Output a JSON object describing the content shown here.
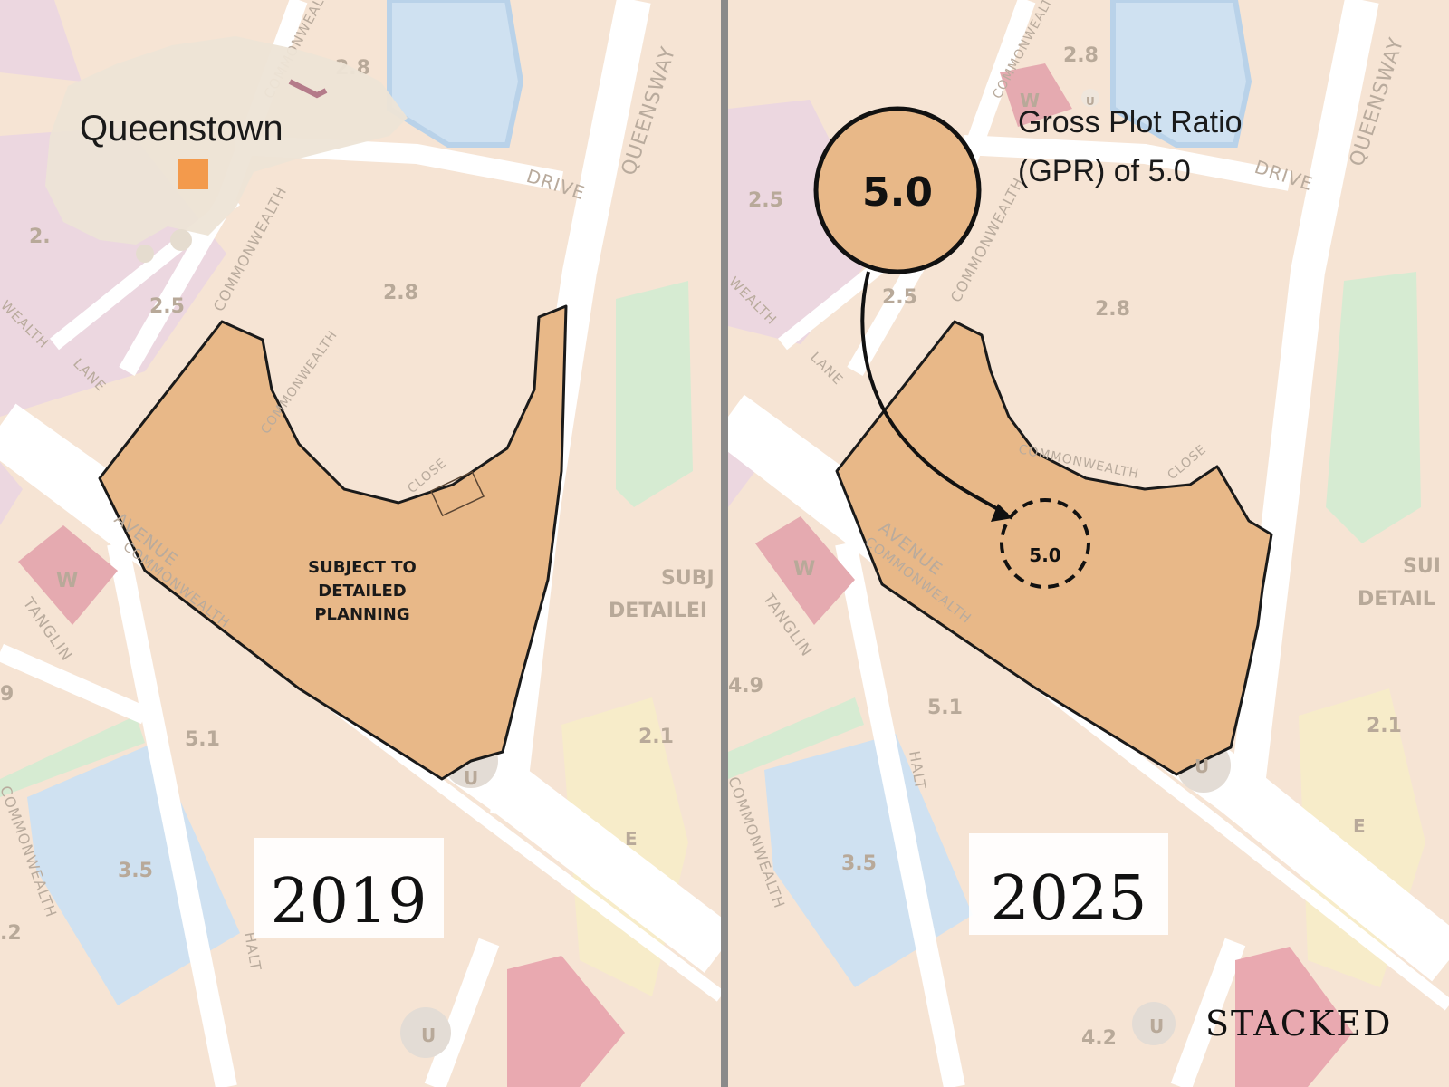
{
  "inset": {
    "title": "Queenstown"
  },
  "panels": [
    {
      "year": "2019",
      "site_text": [
        "SUBJECT TO",
        "DETAILED",
        "PLANNING"
      ],
      "plot_ratios": [
        "2.8",
        "2.5",
        "2.8",
        "2.",
        "5.1",
        "3.5",
        "2.1",
        "9",
        ".2"
      ],
      "zone_codes": [
        "W",
        "U",
        "E",
        "U"
      ],
      "partial_labels": [
        "SUBJ",
        "DETAILEI"
      ],
      "roads": [
        "COMMONWEALTH",
        "DRIVE",
        "QUEENSWAY",
        "COMMONWEALTH",
        "LANE",
        "WEALTH",
        "COMMONWEALTH",
        "CLOSE",
        "AVENUE",
        "COMMONWEALTH",
        "TANGLIN",
        "HALT",
        "COMMONWEALTH"
      ]
    },
    {
      "year": "2025",
      "annotation": {
        "value": "5.0",
        "line1": "Gross Plot Ratio",
        "line2": "(GPR) of 5.0"
      },
      "site_value": "5.0",
      "plot_ratios": [
        "2.8",
        "2.5",
        "2.5",
        "2.8",
        "4.9",
        "5.1",
        "3.5",
        "2.1",
        "4.2"
      ],
      "zone_codes": [
        "W",
        "U",
        "W",
        "U",
        "E",
        "U"
      ],
      "partial_labels": [
        "SUI",
        "DETAIL"
      ],
      "roads": [
        "COMMONWEALTH",
        "DRIVE",
        "QUEENSWAY",
        "COMMONWEALTH",
        "WEALTH",
        "LANE",
        "CLOSE",
        "COMMONWEALTH",
        "AVENUE",
        "COMMONWEALTH",
        "TANGLIN",
        "HALT",
        "COMMONWEALTH"
      ]
    }
  ],
  "brand": "STACKED",
  "colors": {
    "subject_site": "#e8b888",
    "residential": "#f6e4d4",
    "road": "#ffffff",
    "water": "#cde0f0",
    "institution": "#e9c9d3",
    "park": "#d5ead0",
    "highlight_inset": "#f39a4c",
    "worship": "#e4a9ad"
  }
}
